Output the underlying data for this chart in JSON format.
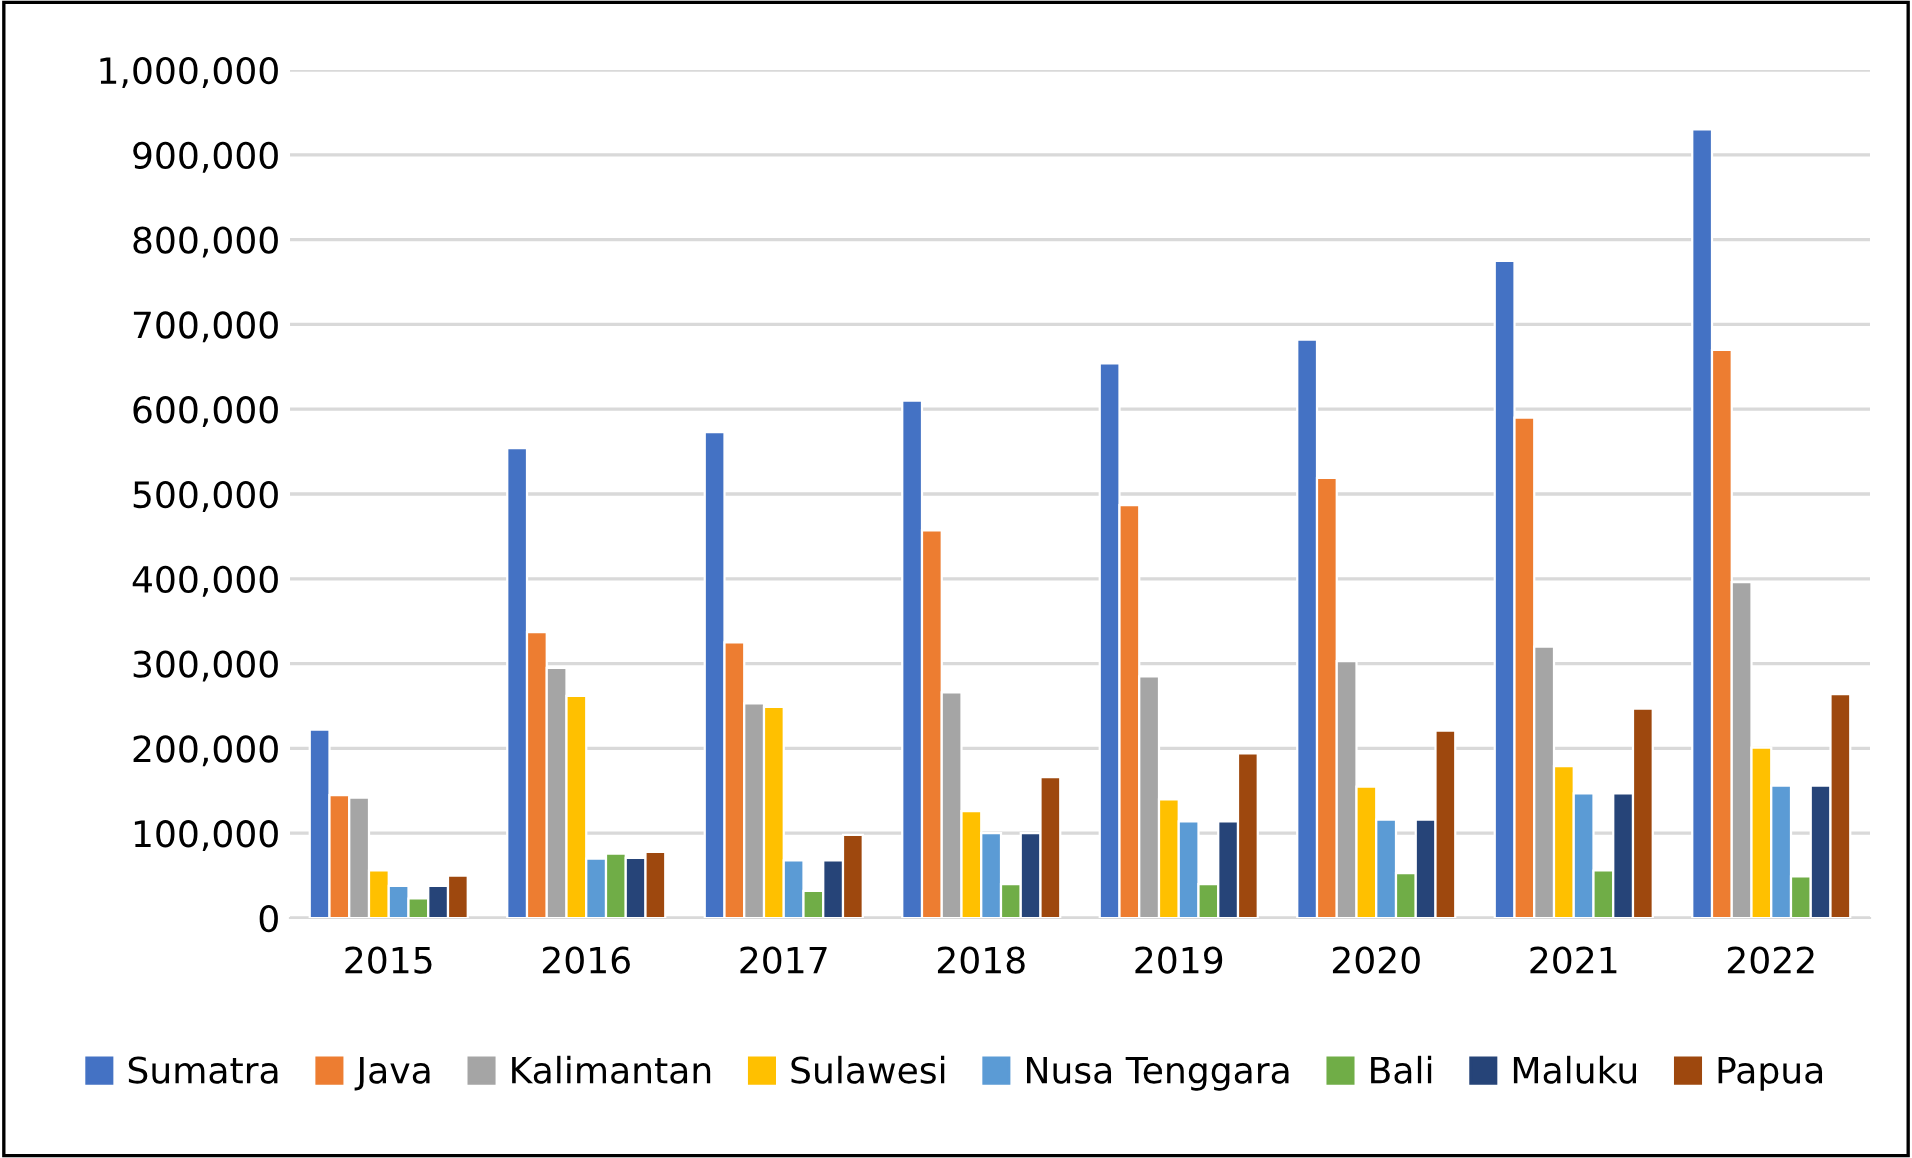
{
  "chart_data": {
    "type": "bar",
    "categories": [
      "2015",
      "2016",
      "2017",
      "2018",
      "2019",
      "2020",
      "2021",
      "2022"
    ],
    "series": [
      {
        "name": "Sumatra",
        "color": "#4472c4",
        "values": [
          222000,
          554000,
          573000,
          610000,
          654000,
          682000,
          775000,
          930000
        ]
      },
      {
        "name": "Java",
        "color": "#ed7d31",
        "values": [
          145000,
          337000,
          325000,
          457000,
          487000,
          519000,
          590000,
          670000
        ]
      },
      {
        "name": "Kalimantan",
        "color": "#a5a5a5",
        "values": [
          142000,
          295000,
          253000,
          266000,
          285000,
          303000,
          320000,
          396000
        ]
      },
      {
        "name": "Sulawesi",
        "color": "#ffc000",
        "values": [
          56000,
          262000,
          249000,
          126000,
          140000,
          155000,
          179000,
          201000
        ]
      },
      {
        "name": "Nusa Tenggara",
        "color": "#5b9bd5",
        "values": [
          38000,
          70000,
          68000,
          100000,
          114000,
          116000,
          147000,
          156000
        ]
      },
      {
        "name": "Bali",
        "color": "#70ad47",
        "values": [
          23000,
          76000,
          32000,
          40000,
          40000,
          53000,
          56000,
          49000
        ]
      },
      {
        "name": "Maluku",
        "color": "#264478",
        "values": [
          38000,
          71000,
          68000,
          100000,
          114000,
          116000,
          147000,
          156000
        ]
      },
      {
        "name": "Papua",
        "color": "#9e480e",
        "values": [
          50000,
          78000,
          98000,
          166000,
          194000,
          221000,
          247000,
          264000
        ]
      }
    ],
    "ylim": [
      0,
      1000000
    ],
    "yticks": [
      {
        "value": 0,
        "label": "0"
      },
      {
        "value": 100000,
        "label": "100,000"
      },
      {
        "value": 200000,
        "label": "200,000"
      },
      {
        "value": 300000,
        "label": "300,000"
      },
      {
        "value": 400000,
        "label": "400,000"
      },
      {
        "value": 500000,
        "label": "500,000"
      },
      {
        "value": 600000,
        "label": "600,000"
      },
      {
        "value": 700000,
        "label": "700,000"
      },
      {
        "value": 800000,
        "label": "800,000"
      },
      {
        "value": 900000,
        "label": "900,000"
      },
      {
        "value": 1000000,
        "label": "1,000,000"
      }
    ],
    "grid": "y",
    "legend": "bottom"
  }
}
